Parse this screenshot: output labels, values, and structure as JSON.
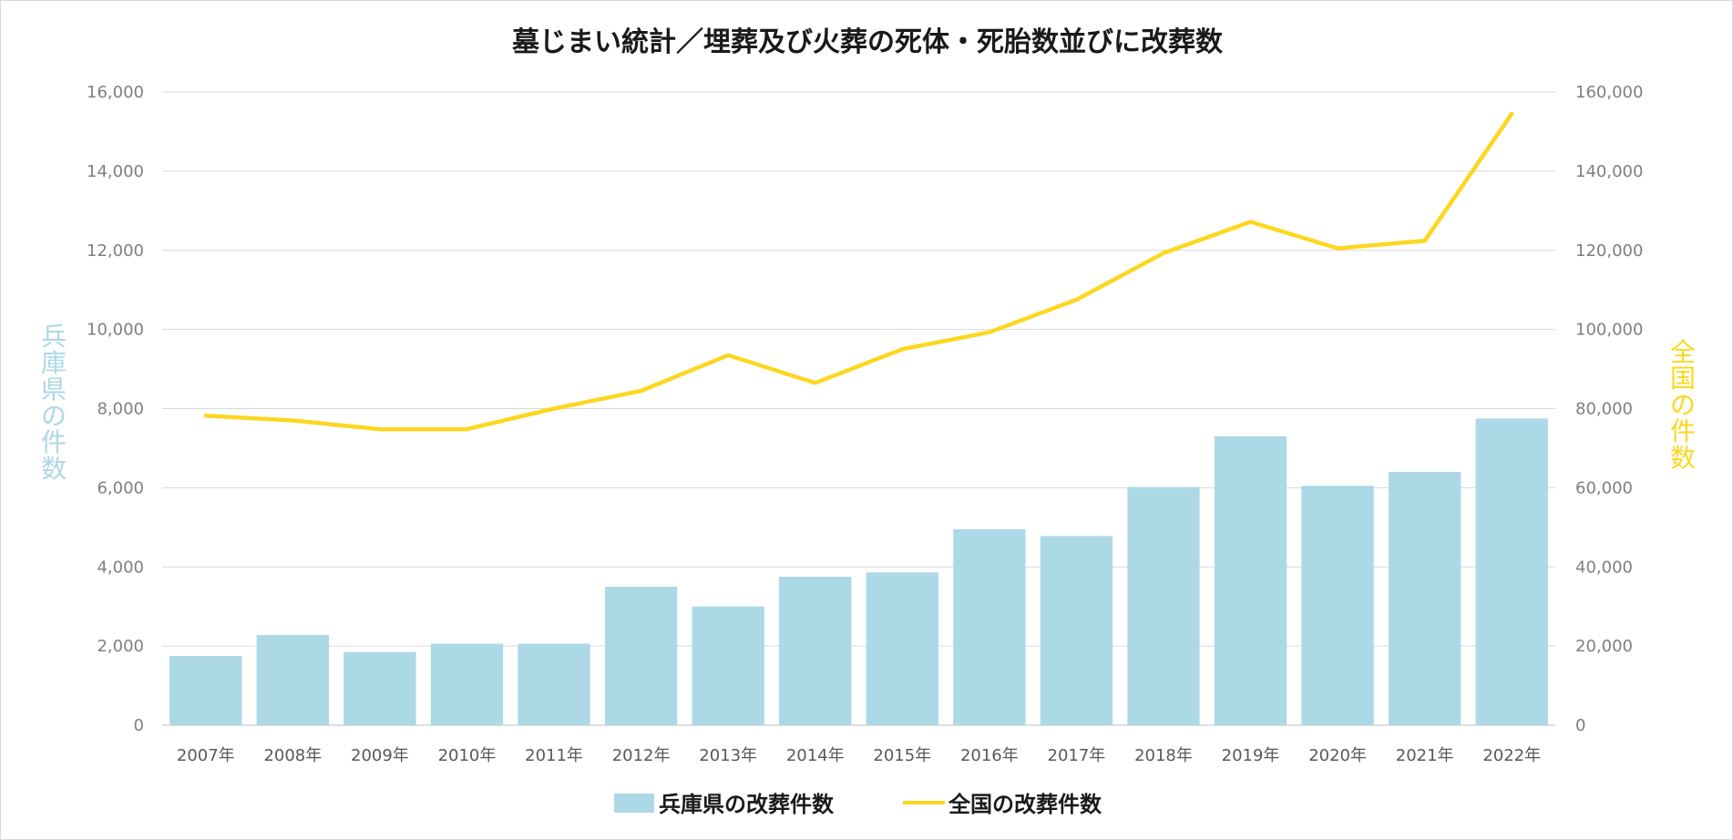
{
  "chart_data": {
    "type": "bar+line",
    "title": "墓じまい統計／埋葬及び火葬の死体・死胎数並びに改葬数",
    "categories": [
      "2007年",
      "2008年",
      "2009年",
      "2010年",
      "2011年",
      "2012年",
      "2013年",
      "2014年",
      "2015年",
      "2016年",
      "2017年",
      "2018年",
      "2019年",
      "2020年",
      "2021年",
      "2022年"
    ],
    "ylabel_left": "兵庫県の件数",
    "ylabel_right": "全国の件数",
    "ylim_left": [
      0,
      16000
    ],
    "ylim_right": [
      0,
      160000
    ],
    "yticks_left": [
      "0",
      "2,000",
      "4,000",
      "6,000",
      "8,000",
      "10,000",
      "12,000",
      "14,000",
      "16,000"
    ],
    "yticks_right": [
      "0",
      "20,000",
      "40,000",
      "60,000",
      "80,000",
      "100,000",
      "120,000",
      "140,000",
      "160,000"
    ],
    "grid": true,
    "legend_position": "bottom",
    "series": [
      {
        "name": "兵庫県の改葬件数",
        "type": "bar",
        "axis": "left",
        "color": "#add8e6",
        "values": [
          1750,
          2280,
          1850,
          2060,
          2060,
          3500,
          3000,
          3750,
          3860,
          4950,
          4780,
          6020,
          7300,
          6050,
          6400,
          7750
        ]
      },
      {
        "name": "全国の改葬件数",
        "type": "line",
        "axis": "right",
        "color": "#fcd71f",
        "values": [
          78200,
          77000,
          74800,
          74800,
          80000,
          84500,
          93500,
          86500,
          95000,
          99300,
          107500,
          119300,
          127200,
          120500,
          122400,
          154500
        ]
      }
    ],
    "colors": {
      "left_axis_title": "#add8e6",
      "right_axis_title": "#fcd71f",
      "grid": "#d9d9d9",
      "tick_text": "#7f7f7f"
    }
  }
}
